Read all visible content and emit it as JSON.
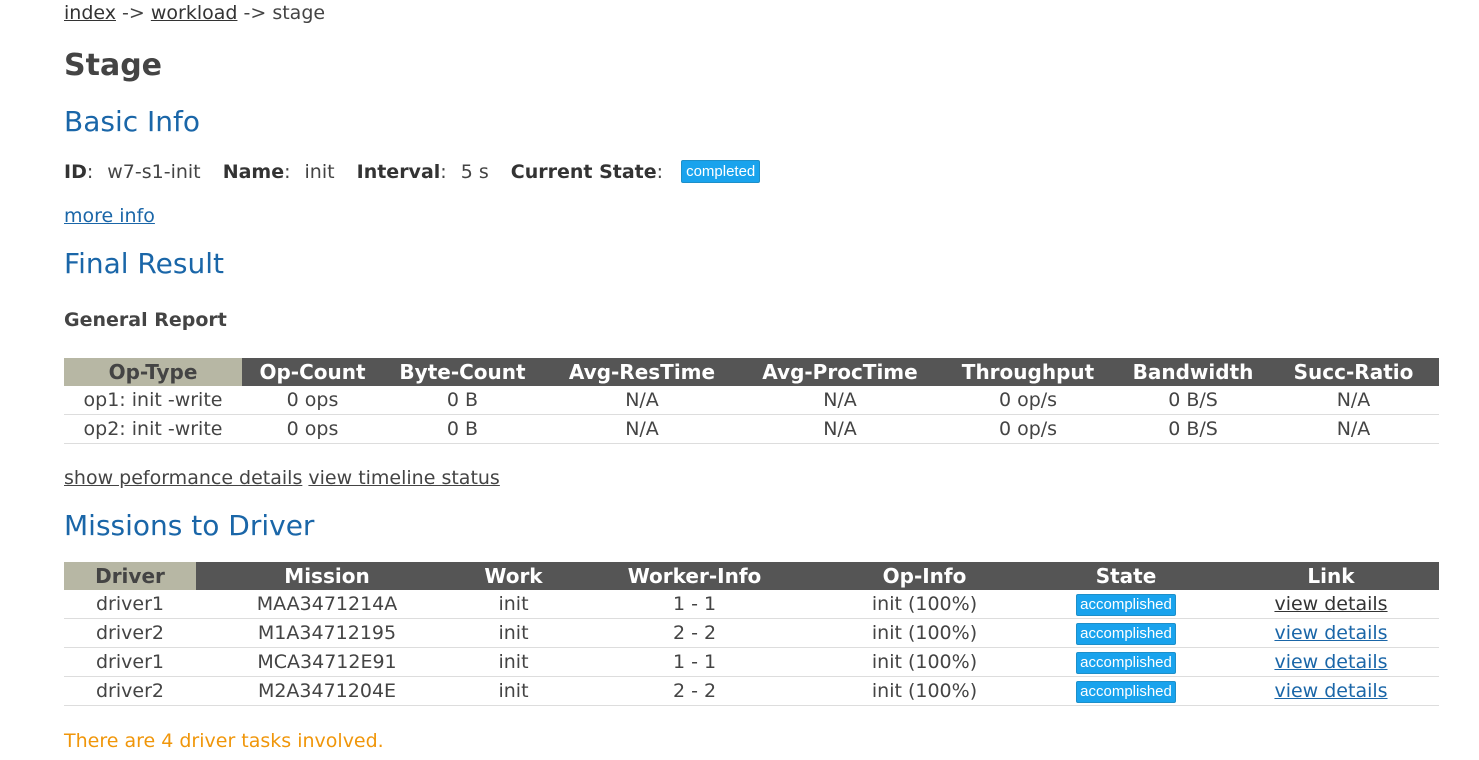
{
  "breadcrumb": {
    "index": "index",
    "sep1": "->",
    "workload": "workload",
    "sep2": "->",
    "current": "stage"
  },
  "page_title": "Stage",
  "basic_info": {
    "heading": "Basic Info",
    "id_label": "ID",
    "id_value": "w7-s1-init",
    "name_label": "Name",
    "name_value": "init",
    "interval_label": "Interval",
    "interval_value": "5 s",
    "state_label": "Current State",
    "state_value": "completed",
    "more_info": "more info"
  },
  "final_result": {
    "heading": "Final Result",
    "subheading": "General Report",
    "columns": [
      "Op-Type",
      "Op-Count",
      "Byte-Count",
      "Avg-ResTime",
      "Avg-ProcTime",
      "Throughput",
      "Bandwidth",
      "Succ-Ratio"
    ],
    "rows": [
      [
        "op1: init -write",
        "0 ops",
        "0 B",
        "N/A",
        "N/A",
        "0 op/s",
        "0 B/S",
        "N/A"
      ],
      [
        "op2: init -write",
        "0 ops",
        "0 B",
        "N/A",
        "N/A",
        "0 op/s",
        "0 B/S",
        "N/A"
      ]
    ],
    "show_perf": "show peformance details",
    "view_timeline": "view timeline status"
  },
  "missions": {
    "heading": "Missions to Driver",
    "columns": [
      "Driver",
      "Mission",
      "Work",
      "Worker-Info",
      "Op-Info",
      "State",
      "Link"
    ],
    "rows": [
      [
        "driver1",
        "MAA3471214A",
        "init",
        "1 - 1",
        "init (100%)",
        "accomplished",
        "view details"
      ],
      [
        "driver2",
        "M1A34712195",
        "init",
        "2 - 2",
        "init (100%)",
        "accomplished",
        "view details"
      ],
      [
        "driver1",
        "MCA34712E91",
        "init",
        "1 - 1",
        "init (100%)",
        "accomplished",
        "view details"
      ],
      [
        "driver2",
        "M2A3471204E",
        "init",
        "2 - 2",
        "init (100%)",
        "accomplished",
        "view details"
      ]
    ],
    "note": "There are 4 driver tasks involved."
  },
  "colors": {
    "accent": "#1a66a8",
    "badge": "#19a3ed",
    "header": "#555555",
    "header_first": "#b7b7a4",
    "note": "#f0960a"
  }
}
